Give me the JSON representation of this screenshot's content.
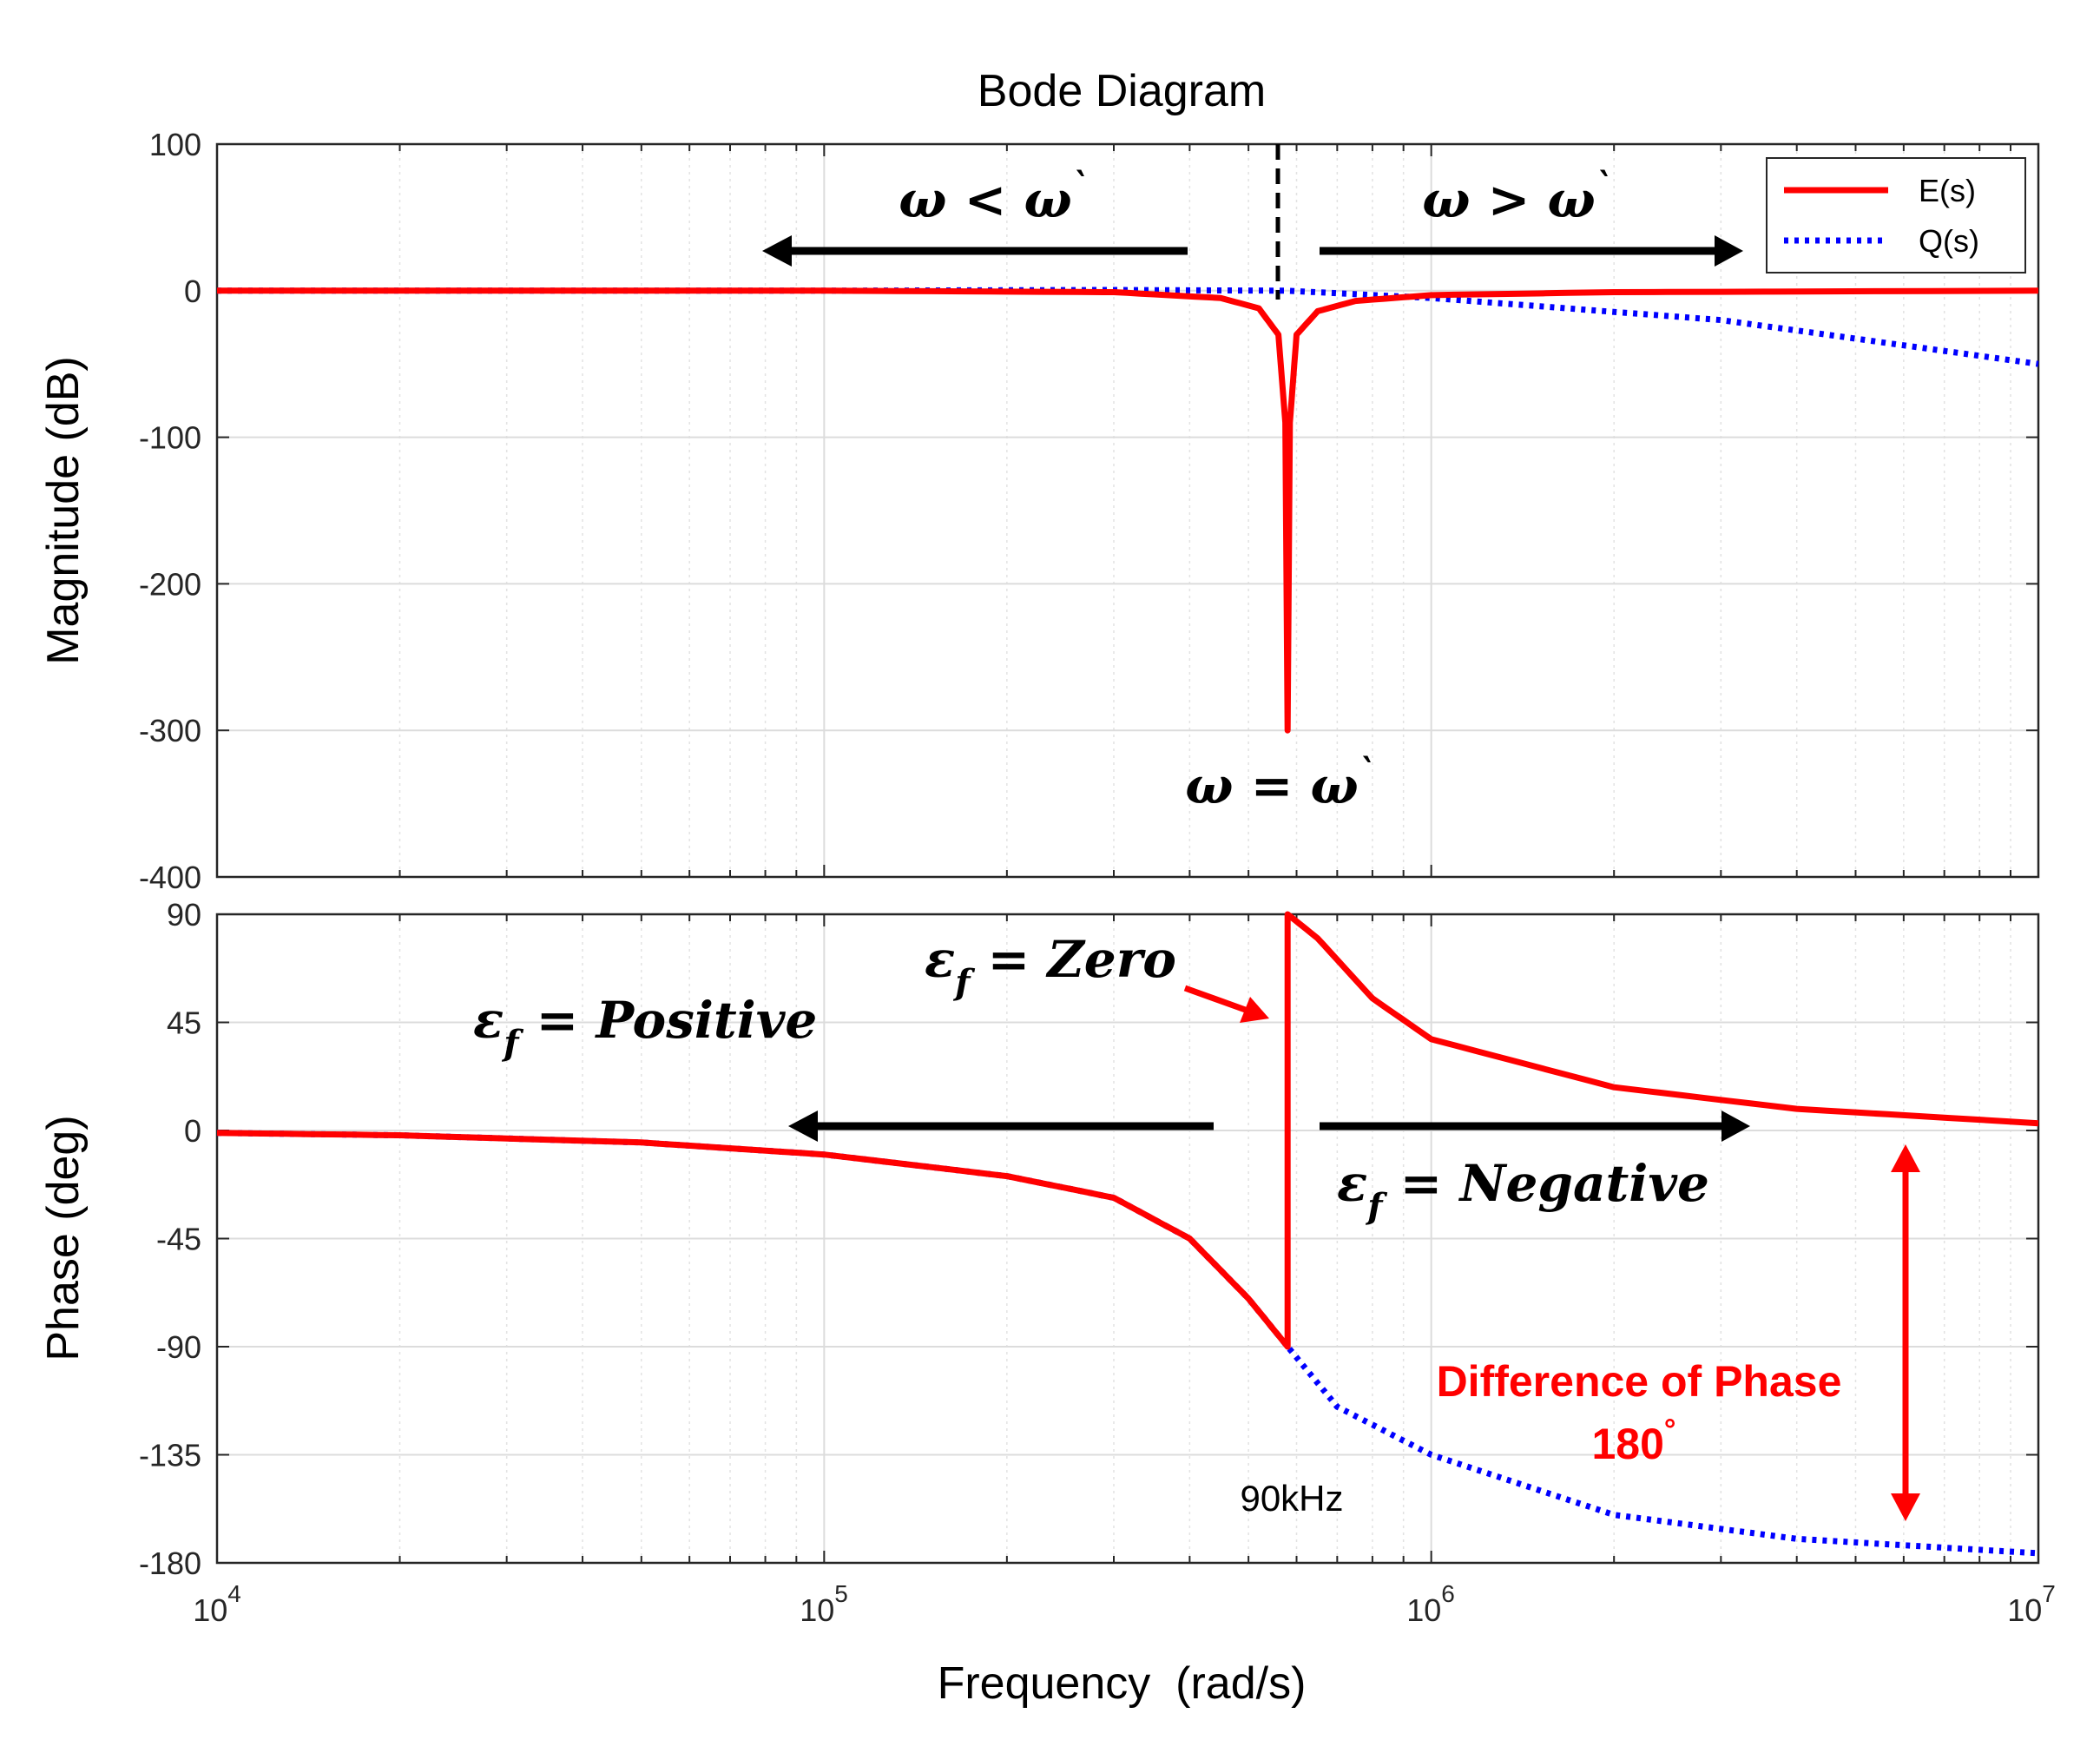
{
  "chart_data": [
    {
      "type": "line",
      "title": "Bode Diagram",
      "ylabel": "Magnitude (dB)",
      "xscale": "log",
      "xlim": [
        10000,
        10000000
      ],
      "ylim": [
        -400,
        100
      ],
      "yticks": [
        "100",
        "0",
        "-100",
        "-200",
        "-300",
        "-400"
      ],
      "grid": true,
      "legend": {
        "position": "top-right",
        "entries": [
          "E(s)",
          "Q(s)"
        ]
      },
      "series": [
        {
          "name": "E(s)",
          "color": "#ff0000",
          "style": "solid",
          "points": [
            [
              10000,
              0
            ],
            [
              100000,
              0
            ],
            [
              300000,
              -1
            ],
            [
              450000,
              -5
            ],
            [
              520000,
              -12
            ],
            [
              560000,
              -30
            ],
            [
              575000,
              -90
            ],
            [
              580000,
              -300
            ],
            [
              585000,
              -90
            ],
            [
              600000,
              -30
            ],
            [
              650000,
              -14
            ],
            [
              750000,
              -7
            ],
            [
              1000000,
              -3
            ],
            [
              2000000,
              -1
            ],
            [
              10000000,
              0
            ]
          ]
        },
        {
          "name": "Q(s)",
          "color": "#0000ff",
          "style": "dotted",
          "points": [
            [
              10000,
              0
            ],
            [
              100000,
              0
            ],
            [
              300000,
              0.5
            ],
            [
              580000,
              0
            ],
            [
              1000000,
              -5
            ],
            [
              3000000,
              -20
            ],
            [
              10000000,
              -50
            ]
          ]
        }
      ],
      "annotations": [
        {
          "text_main": "ω < ω",
          "text_sup": "`",
          "arrow": "left"
        },
        {
          "text_main": "ω > ω",
          "text_sup": "`",
          "arrow": "right"
        },
        {
          "text_main": "ω = ω",
          "text_sup": "`"
        }
      ],
      "marker_x": 580000
    },
    {
      "type": "line",
      "ylabel": "Phase (deg)",
      "xlabel": "Frequency  (rad/s)",
      "xscale": "log",
      "xlim": [
        10000,
        10000000
      ],
      "ylim": [
        -180,
        90
      ],
      "yticks": [
        "90",
        "45",
        "0",
        "-45",
        "-90",
        "-135",
        "-180"
      ],
      "xticks": [
        {
          "base": "10",
          "exp": "4"
        },
        {
          "base": "10",
          "exp": "5"
        },
        {
          "base": "10",
          "exp": "6"
        },
        {
          "base": "10",
          "exp": "7"
        }
      ],
      "grid": true,
      "series": [
        {
          "name": "E(s)",
          "color": "#ff0000",
          "style": "solid",
          "points": [
            [
              10000,
              -1
            ],
            [
              20000,
              -2
            ],
            [
              50000,
              -5
            ],
            [
              100000,
              -10
            ],
            [
              200000,
              -19
            ],
            [
              300000,
              -28
            ],
            [
              400000,
              -45
            ],
            [
              500000,
              -70
            ],
            [
              580000,
              -90
            ],
            [
              580001,
              90
            ],
            [
              650000,
              80
            ],
            [
              800000,
              55
            ],
            [
              1000000,
              38
            ],
            [
              2000000,
              18
            ],
            [
              4000000,
              9
            ],
            [
              10000000,
              3
            ]
          ]
        },
        {
          "name": "Q(s)",
          "color": "#0000ff",
          "style": "dotted",
          "points": [
            [
              10000,
              -1
            ],
            [
              20000,
              -2
            ],
            [
              50000,
              -5
            ],
            [
              100000,
              -10
            ],
            [
              200000,
              -19
            ],
            [
              300000,
              -28
            ],
            [
              400000,
              -45
            ],
            [
              500000,
              -70
            ],
            [
              580000,
              -90
            ],
            [
              700000,
              -115
            ],
            [
              1000000,
              -135
            ],
            [
              2000000,
              -160
            ],
            [
              4000000,
              -170
            ],
            [
              10000000,
              -176
            ]
          ]
        }
      ],
      "annotations": [
        {
          "text_main": "ε",
          "text_sub": "f",
          "text_rest": " = Positive",
          "arrow": "left"
        },
        {
          "text_main": "ε",
          "text_sub": "f",
          "text_rest": " = Zero",
          "arrow": "pointer"
        },
        {
          "text_main": "ε",
          "text_sub": "f",
          "text_rest": " = Negative",
          "arrow": "right"
        },
        {
          "text": "Difference of Phase",
          "color": "#ff0000"
        },
        {
          "text_main": "180",
          "text_sup": "°",
          "color": "#ff0000"
        },
        {
          "text": "90kHz"
        }
      ]
    }
  ]
}
